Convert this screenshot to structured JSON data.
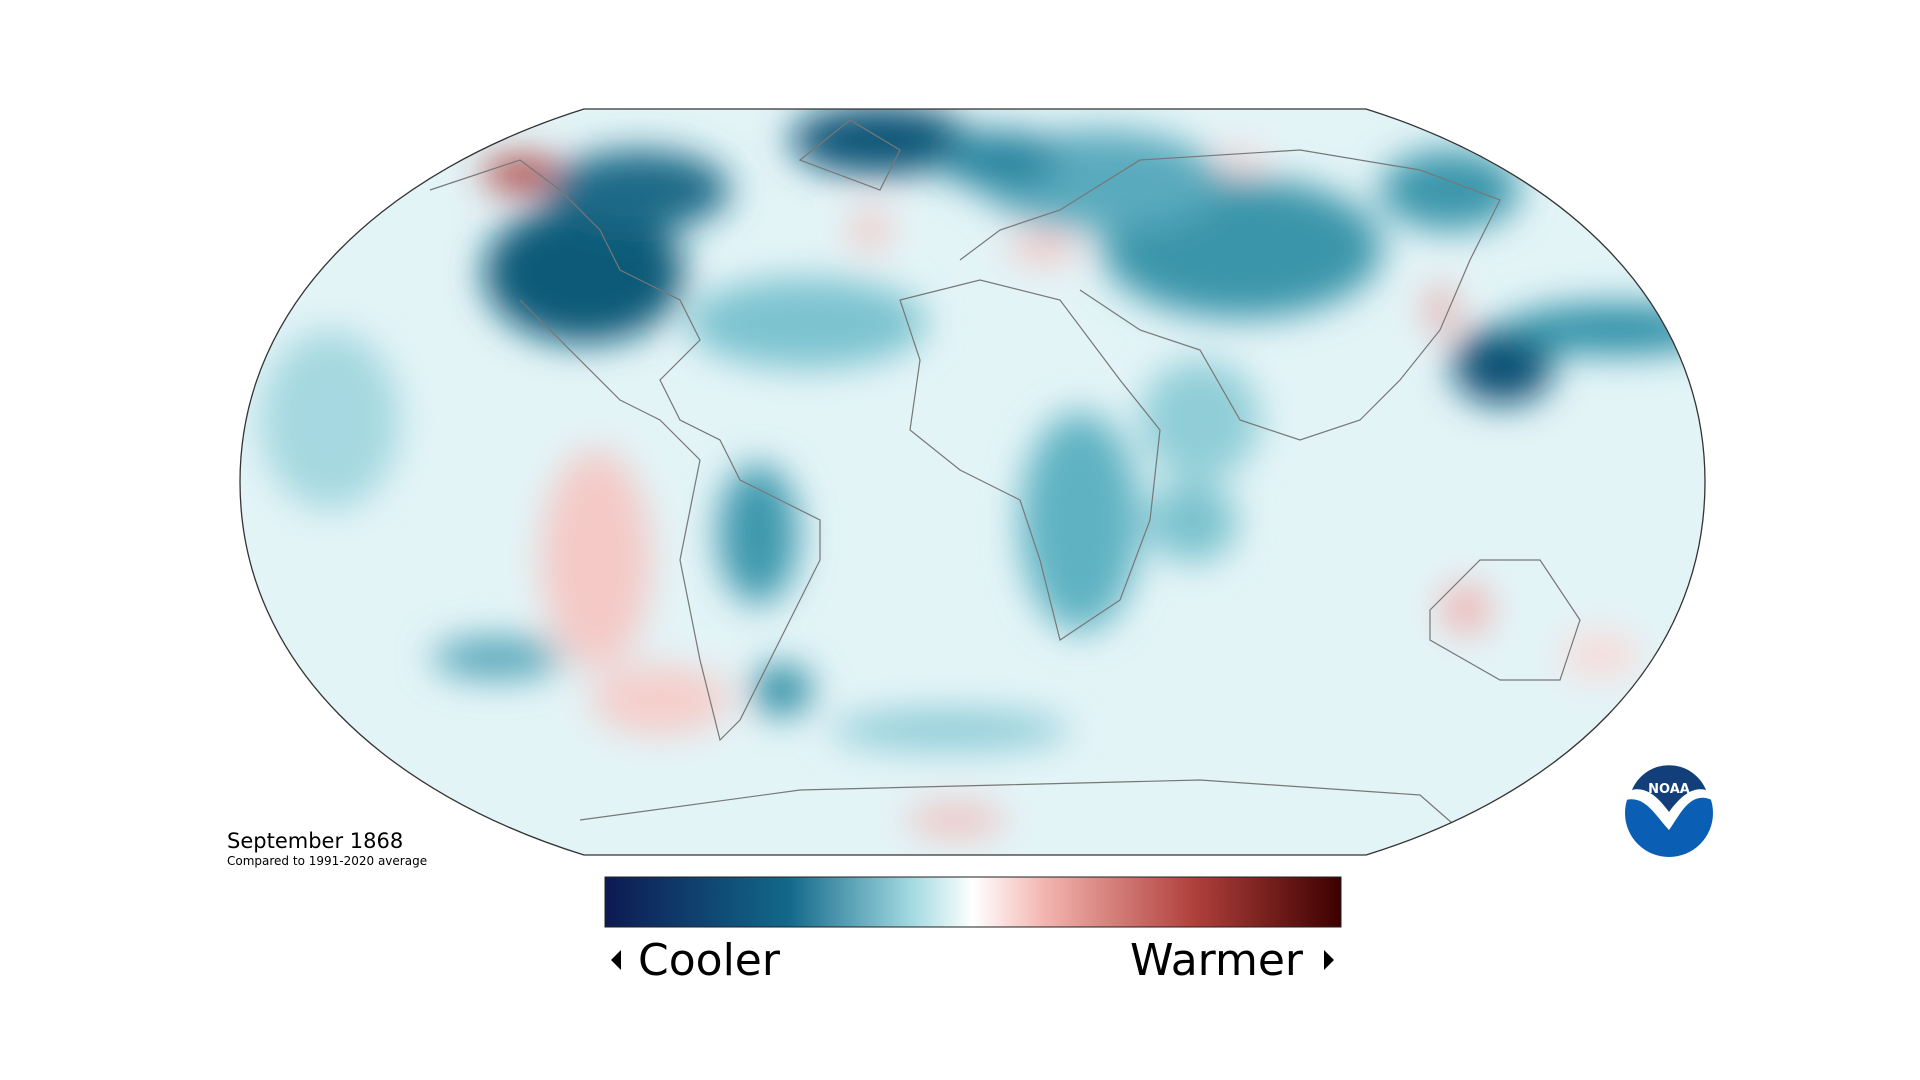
{
  "title": "September 1868",
  "subtitle": "Compared to 1991-2020 average",
  "legend": {
    "low_label": "Cooler",
    "high_label": "Warmer"
  },
  "logo": {
    "text": "NOAA"
  }
}
